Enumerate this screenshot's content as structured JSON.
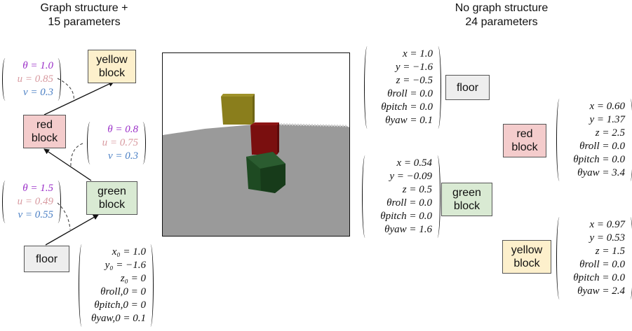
{
  "headings": {
    "left": {
      "line1": "Graph structure +",
      "line2": "15 parameters"
    },
    "right": {
      "line1": "No graph structure",
      "line2": "24 parameters"
    }
  },
  "colors": {
    "yellow_block_fill": "#fdf0cc",
    "red_block_fill": "#f4cccc",
    "green_block_fill": "#d9ead3",
    "floor_fill": "#eeeeee",
    "theta_text": "#9b30c8",
    "u_text": "#d89aa0",
    "v_text": "#4a7fc4",
    "scene_floor": "#9a9a9a",
    "yellow_cube": "#8a7e1c",
    "red_cube": "#7a0f0f",
    "green_cube": "#1e4a22"
  },
  "graph": {
    "yellow_block": {
      "line1": "yellow",
      "line2": "block"
    },
    "red_block": {
      "line1": "red",
      "line2": "block"
    },
    "green_block": {
      "line1": "green",
      "line2": "block"
    },
    "floor": {
      "label": "floor"
    },
    "red_params": {
      "theta": "θ = 1.0",
      "u": "u = 0.85",
      "v": "v = 0.3"
    },
    "green_params": {
      "theta": "θ = 0.8",
      "u": "u = 0.75",
      "v": "v = 0.3"
    },
    "floor_to_green_params": {
      "theta": "θ = 1.5",
      "u": "u = 0.49",
      "v": "v = 0.55"
    },
    "floor_params": {
      "x0": "x₀ = 1.0",
      "y0": "y₀ = −1.6",
      "z0": "z₀ = 0",
      "roll0": "θroll,0 = 0",
      "pitch0": "θpitch,0 = 0",
      "yaw0": "θyaw,0 = 0.1"
    }
  },
  "flat": {
    "floor": {
      "label": "floor",
      "x": "x = 1.0",
      "y": "y = −1.6",
      "z": "z = −0.5",
      "roll": "θroll = 0.0",
      "pitch": "θpitch = 0.0",
      "yaw": "θyaw = 0.1"
    },
    "green": {
      "line1": "green",
      "line2": "block",
      "x": "x = 0.54",
      "y": "y = −0.09",
      "z": "z = 0.5",
      "roll": "θroll = 0.0",
      "pitch": "θpitch = 0.0",
      "yaw": "θyaw = 1.6"
    },
    "red": {
      "line1": "red",
      "line2": "block",
      "x": "x = 0.60",
      "y": "y = 1.37",
      "z": "z = 2.5",
      "roll": "θroll = 0.0",
      "pitch": "θpitch = 0.0",
      "yaw": "θyaw = 3.4"
    },
    "yellow": {
      "line1": "yellow",
      "line2": "block",
      "x": "x = 0.97",
      "y": "y = 0.53",
      "z": "z = 1.5",
      "roll": "θroll = 0.0",
      "pitch": "θpitch = 0.0",
      "yaw": "θyaw = 2.4"
    }
  }
}
